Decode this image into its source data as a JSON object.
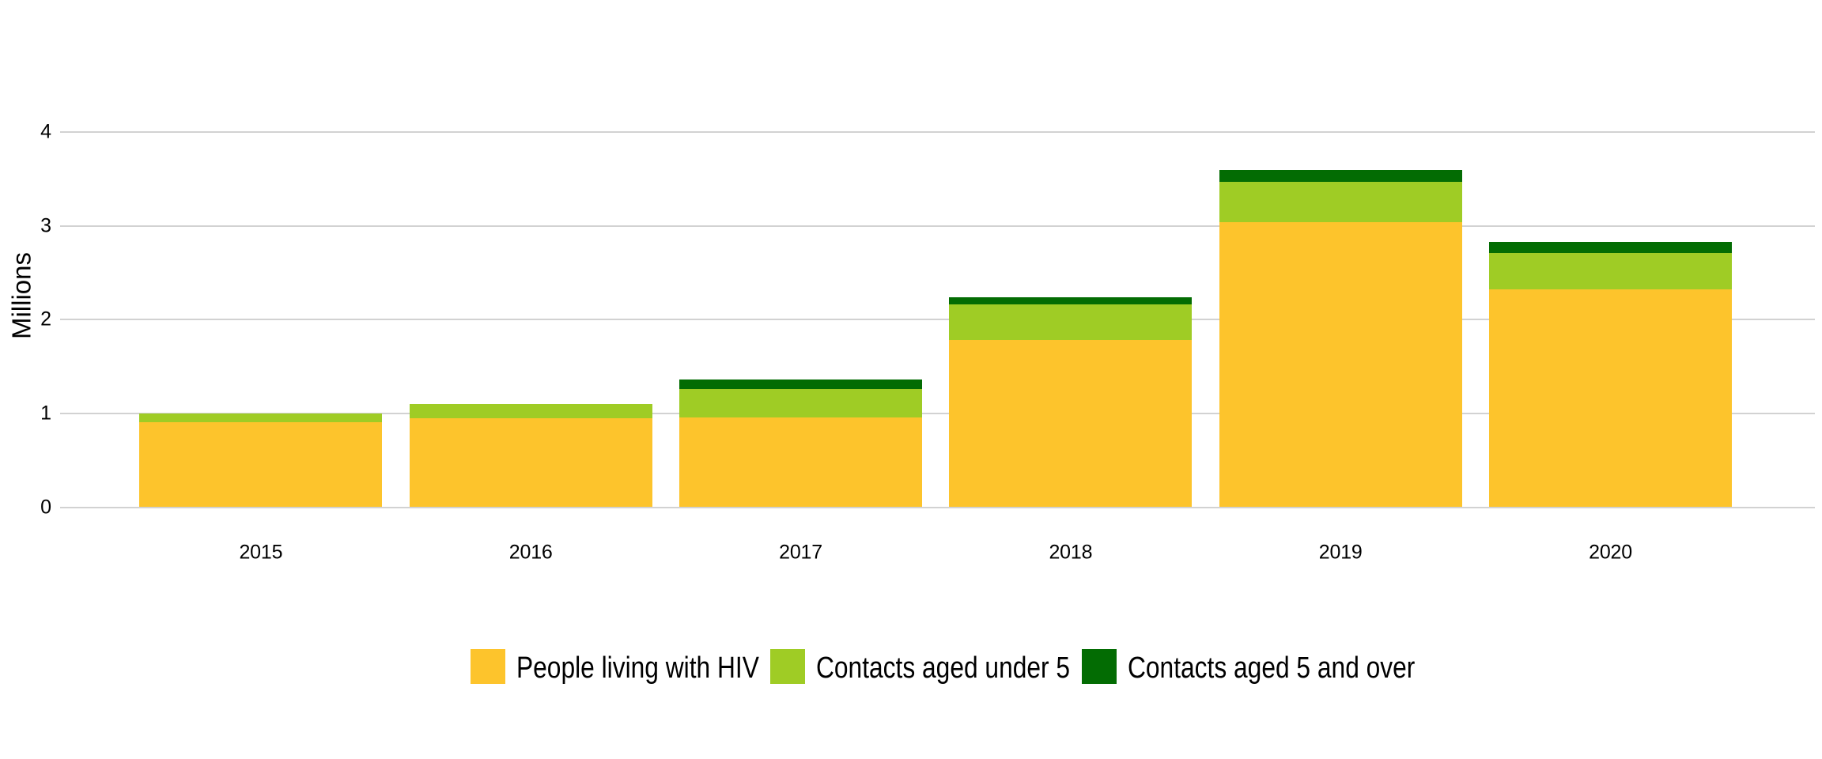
{
  "chart_data": {
    "type": "bar",
    "stacked": true,
    "categories": [
      "2015",
      "2016",
      "2017",
      "2018",
      "2019",
      "2020"
    ],
    "series": [
      {
        "name": "People living with HIV",
        "color": "#fdc42c",
        "values": [
          0.91,
          0.95,
          0.96,
          1.78,
          3.04,
          2.32
        ]
      },
      {
        "name": "Contacts aged under 5",
        "color": "#9fcc25",
        "values": [
          0.09,
          0.15,
          0.3,
          0.38,
          0.43,
          0.39
        ]
      },
      {
        "name": "Contacts aged 5 and over",
        "color": "#036c03",
        "values": [
          0.0,
          0.0,
          0.1,
          0.08,
          0.13,
          0.12
        ]
      }
    ],
    "title": "",
    "xlabel": "",
    "ylabel": "Millions",
    "ylim": [
      0,
      4
    ],
    "yticks": [
      0,
      1,
      2,
      3,
      4
    ],
    "grid": true,
    "gridline_color": "#d2d2d2",
    "background_color": "#ffffff",
    "text_color": "#000000",
    "legend_position": "bottom"
  }
}
